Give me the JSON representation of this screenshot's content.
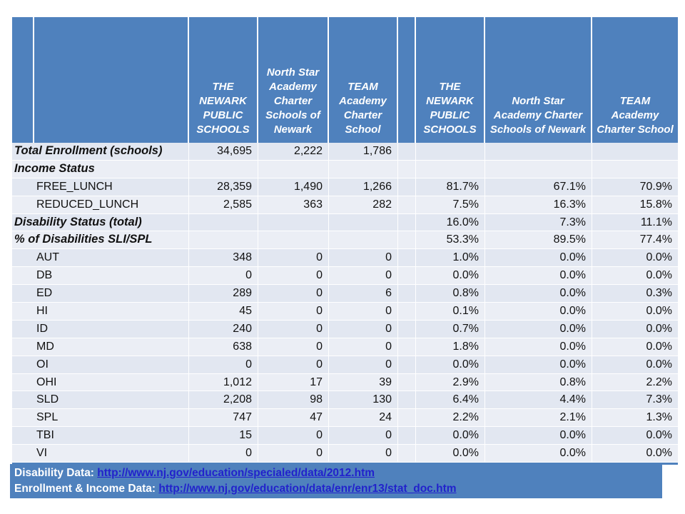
{
  "table": {
    "header": {
      "columns": [
        "",
        "",
        "THE NEWARK PUBLIC SCHOOLS",
        "North Star Academy Charter Schools of Newark",
        "TEAM Academy Charter School",
        "",
        "THE NEWARK PUBLIC SCHOOLS",
        "North Star Academy Charter Schools of Newark",
        "TEAM Academy Charter School"
      ]
    },
    "rows": [
      {
        "label": "Total Enrollment (schools)",
        "style": "section",
        "values": [
          "34,695",
          "2,222",
          "1,786",
          "",
          "",
          ""
        ]
      },
      {
        "label": "Income Status",
        "style": "section",
        "values": [
          "",
          "",
          "",
          "",
          "",
          ""
        ]
      },
      {
        "label": "FREE_LUNCH",
        "style": "item",
        "values": [
          "28,359",
          "1,490",
          "1,266",
          "81.7%",
          "67.1%",
          "70.9%"
        ]
      },
      {
        "label": "REDUCED_LUNCH",
        "style": "item",
        "values": [
          "2,585",
          "363",
          "282",
          "7.5%",
          "16.3%",
          "15.8%"
        ]
      },
      {
        "label": "Disability Status (total)",
        "style": "section",
        "values": [
          "",
          "",
          "",
          "16.0%",
          "7.3%",
          "11.1%"
        ]
      },
      {
        "label": "% of Disabilities SLI/SPL",
        "style": "section",
        "values": [
          "",
          "",
          "",
          "53.3%",
          "89.5%",
          "77.4%"
        ]
      },
      {
        "label": "AUT",
        "style": "item",
        "values": [
          "348",
          "0",
          "0",
          "1.0%",
          "0.0%",
          "0.0%"
        ]
      },
      {
        "label": "DB",
        "style": "item",
        "values": [
          "0",
          "0",
          "0",
          "0.0%",
          "0.0%",
          "0.0%"
        ]
      },
      {
        "label": "ED",
        "style": "item",
        "values": [
          "289",
          "0",
          "6",
          "0.8%",
          "0.0%",
          "0.3%"
        ]
      },
      {
        "label": "HI",
        "style": "item",
        "values": [
          "45",
          "0",
          "0",
          "0.1%",
          "0.0%",
          "0.0%"
        ]
      },
      {
        "label": "ID",
        "style": "item",
        "values": [
          "240",
          "0",
          "0",
          "0.7%",
          "0.0%",
          "0.0%"
        ]
      },
      {
        "label": "MD",
        "style": "item",
        "values": [
          "638",
          "0",
          "0",
          "1.8%",
          "0.0%",
          "0.0%"
        ]
      },
      {
        "label": "OI",
        "style": "item",
        "values": [
          "0",
          "0",
          "0",
          "0.0%",
          "0.0%",
          "0.0%"
        ]
      },
      {
        "label": "OHI",
        "style": "item",
        "values": [
          "1,012",
          "17",
          "39",
          "2.9%",
          "0.8%",
          "2.2%"
        ]
      },
      {
        "label": "SLD",
        "style": "item",
        "values": [
          "2,208",
          "98",
          "130",
          "6.4%",
          "4.4%",
          "7.3%"
        ]
      },
      {
        "label": "SPL",
        "style": "item",
        "values": [
          "747",
          "47",
          "24",
          "2.2%",
          "2.1%",
          "1.3%"
        ]
      },
      {
        "label": "TBI",
        "style": "item",
        "values": [
          "15",
          "0",
          "0",
          "0.0%",
          "0.0%",
          "0.0%"
        ]
      },
      {
        "label": "VI",
        "style": "item",
        "values": [
          "0",
          "0",
          "0",
          "0.0%",
          "0.0%",
          "0.0%"
        ]
      }
    ]
  },
  "footer": {
    "lines": [
      {
        "label": "Disability Data:",
        "link": "http://www.nj.gov/education/specialed/data/2012.htm"
      },
      {
        "label": "Enrollment & Income Data:",
        "link": "http://www.nj.gov/education/data/enr/enr13/stat_doc.htm"
      }
    ]
  },
  "colors": {
    "header_bg": "#4f81bd",
    "footer_bg": "#4f81bd",
    "band_dark": "#e2e7f1",
    "band_light": "#ebeef5",
    "link_blue": "#2222cc"
  }
}
